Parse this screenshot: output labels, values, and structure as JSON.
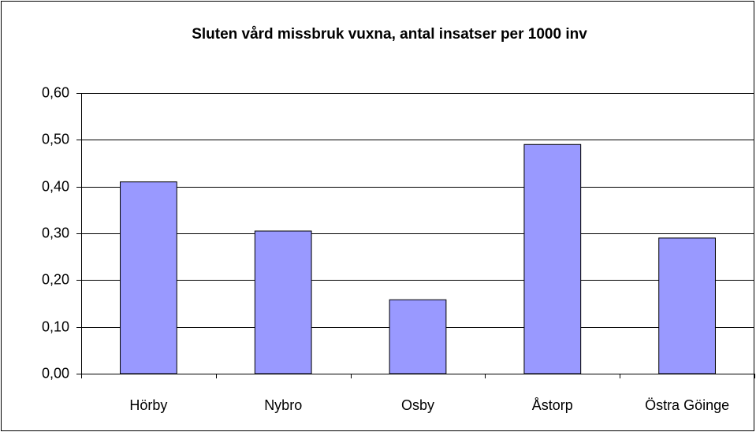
{
  "chart_data": {
    "type": "bar",
    "title": "Sluten vård missbruk vuxna, antal insatser per 1000 inv",
    "categories": [
      "Hörby",
      "Nybro",
      "Osby",
      "Åstorp",
      "Östra Göinge"
    ],
    "values": [
      0.41,
      0.305,
      0.158,
      0.49,
      0.29
    ],
    "color": "#9999ff",
    "ylim": [
      0,
      0.6
    ],
    "yticks": [
      {
        "value": 0,
        "label": "0,00"
      },
      {
        "value": 0.1,
        "label": "0,10"
      },
      {
        "value": 0.2,
        "label": "0,20"
      },
      {
        "value": 0.3,
        "label": "0,30"
      },
      {
        "value": 0.4,
        "label": "0,40"
      },
      {
        "value": 0.5,
        "label": "0,50"
      },
      {
        "value": 0.6,
        "label": "0,60"
      }
    ],
    "grid": true
  }
}
